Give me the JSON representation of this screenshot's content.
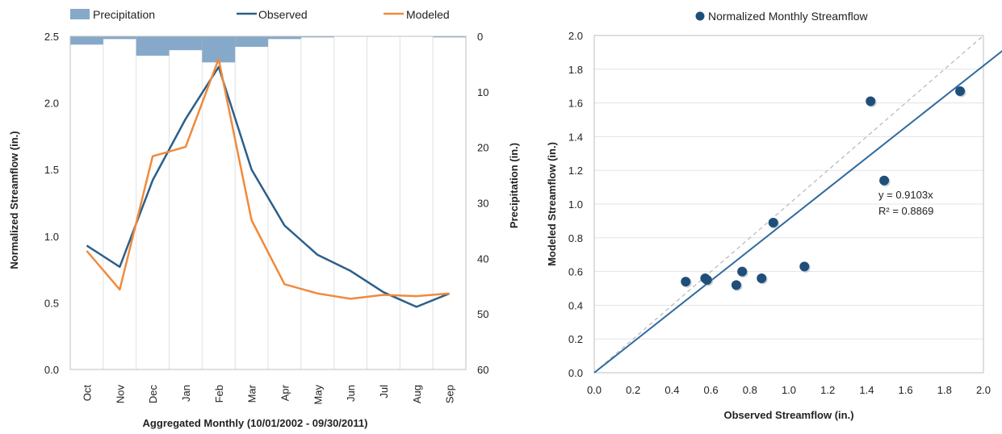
{
  "chart_data": [
    {
      "type": "line",
      "legend": [
        "Precipitation",
        "Observed",
        "Modeled"
      ],
      "legend_position": "top",
      "colors": {
        "precipitation": "#86a9c9",
        "observed": "#2c5f8a",
        "modeled": "#f08a3c"
      },
      "categories": [
        "Oct",
        "Nov",
        "Dec",
        "Jan",
        "Feb",
        "Mar",
        "Apr",
        "May",
        "Jun",
        "Jul",
        "Aug",
        "Sep"
      ],
      "series": [
        {
          "name": "Observed",
          "axis": "left",
          "values": [
            0.93,
            0.77,
            1.42,
            1.88,
            2.27,
            1.5,
            1.08,
            0.86,
            0.74,
            0.58,
            0.47,
            0.57
          ]
        },
        {
          "name": "Modeled",
          "axis": "left",
          "values": [
            0.89,
            0.6,
            1.6,
            1.67,
            2.33,
            1.12,
            0.64,
            0.57,
            0.53,
            0.56,
            0.55,
            0.57
          ]
        },
        {
          "name": "Precipitation",
          "axis": "right",
          "type": "bar",
          "inverted": true,
          "values": [
            1.5,
            0.5,
            3.5,
            2.5,
            4.7,
            1.9,
            0.5,
            0.2,
            0.0,
            0.0,
            0.0,
            0.2
          ]
        }
      ],
      "xlabel": "Aggregated Monthly (10/01/2002 - 09/30/2011)",
      "ylabel": "Normalized Streamflow (in.)",
      "y2label": "Precipitation (in.)",
      "ylim": [
        0,
        2.5
      ],
      "yticks": [
        "0.0",
        "0.5",
        "1.0",
        "1.5",
        "2.0",
        "2.5"
      ],
      "y2lim": [
        0,
        60
      ],
      "y2ticks": [
        "0",
        "10",
        "20",
        "30",
        "40",
        "50",
        "60"
      ],
      "grid": "vertical"
    },
    {
      "type": "scatter",
      "legend": [
        "Normalized Monthly Streamflow"
      ],
      "legend_position": "top",
      "colors": {
        "points": "#1f4e79",
        "trendline": "#2f6aa0",
        "one_to_one": "#bbbbbb"
      },
      "points": [
        {
          "x": 0.47,
          "y": 0.54
        },
        {
          "x": 0.57,
          "y": 0.56
        },
        {
          "x": 0.58,
          "y": 0.55
        },
        {
          "x": 0.73,
          "y": 0.52
        },
        {
          "x": 0.76,
          "y": 0.6
        },
        {
          "x": 0.86,
          "y": 0.56
        },
        {
          "x": 0.92,
          "y": 0.89
        },
        {
          "x": 1.08,
          "y": 0.63
        },
        {
          "x": 1.42,
          "y": 1.61
        },
        {
          "x": 1.49,
          "y": 1.14
        },
        {
          "x": 1.88,
          "y": 1.67
        }
      ],
      "trendline_slope": 0.9103,
      "annotations": [
        "y = 0.9103x",
        "R² = 0.8869"
      ],
      "xlabel": "Observed Streamflow (in.)",
      "ylabel": "Modeled Streamflow (in.)",
      "xlim": [
        0,
        2.0
      ],
      "ylim": [
        0,
        2.0
      ],
      "xticks": [
        "0.0",
        "0.2",
        "0.4",
        "0.6",
        "0.8",
        "1.0",
        "1.2",
        "1.4",
        "1.6",
        "1.8",
        "2.0"
      ],
      "yticks": [
        "0.0",
        "0.2",
        "0.4",
        "0.6",
        "0.8",
        "1.0",
        "1.2",
        "1.4",
        "1.6",
        "1.8",
        "2.0"
      ],
      "grid": "horizontal"
    }
  ]
}
